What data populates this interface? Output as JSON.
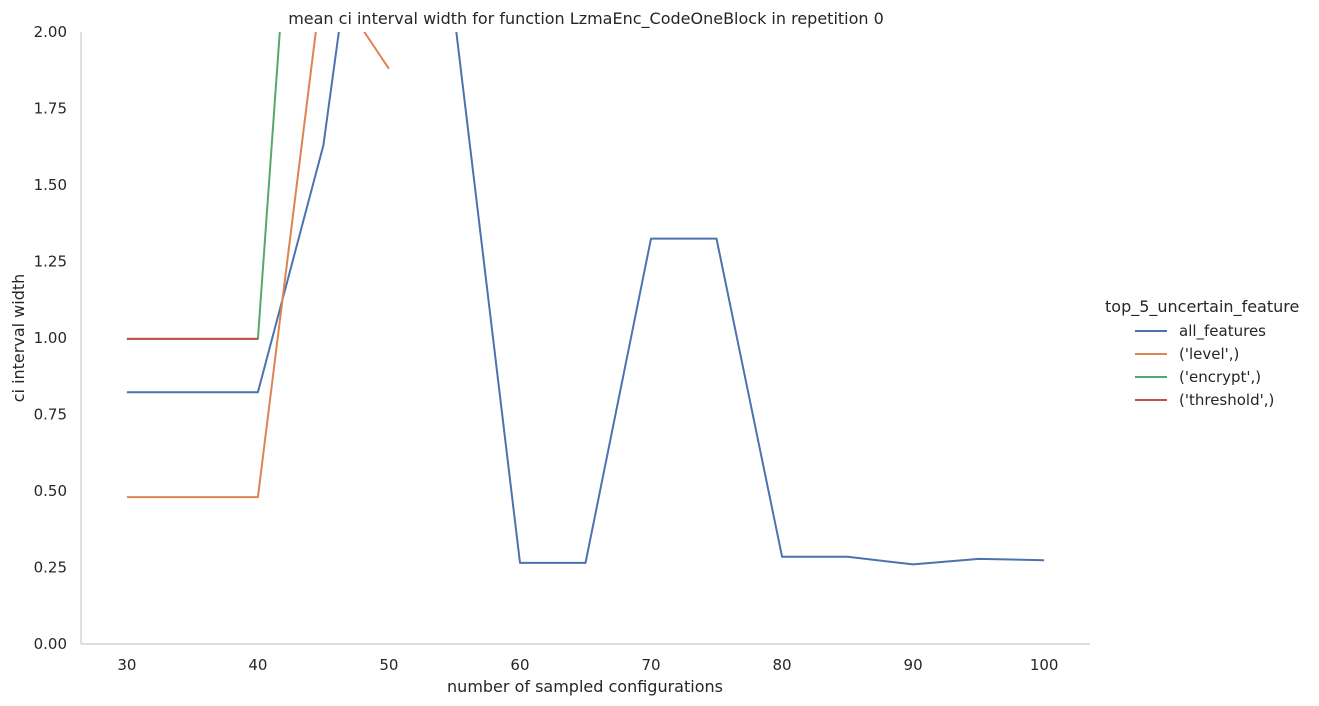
{
  "chart_data": {
    "type": "line",
    "title": "mean ci interval width for function LzmaEnc_CodeOneBlock in repetition 0",
    "xlabel": "number of sampled configurations",
    "ylabel": "ci interval width",
    "xlim": [
      26.5,
      103.5
    ],
    "ylim": [
      0,
      2
    ],
    "xticks": [
      30,
      40,
      50,
      60,
      70,
      80,
      90,
      100
    ],
    "yticks": [
      "0.00",
      "0.25",
      "0.50",
      "0.75",
      "1.00",
      "1.25",
      "1.50",
      "1.75",
      "2.00"
    ],
    "grid": false,
    "legend": {
      "title": "top_5_uncertain_feature",
      "placement": "right"
    },
    "series": [
      {
        "name": "all_features",
        "color": "#4c72b0",
        "x": [
          30,
          35,
          40,
          45,
          50,
          55,
          60,
          65,
          70,
          75,
          80,
          85,
          90,
          95,
          100
        ],
        "y": [
          0.823,
          0.823,
          0.823,
          1.63,
          3.2,
          2.05,
          0.265,
          0.265,
          1.325,
          1.325,
          0.285,
          0.285,
          0.26,
          0.278,
          0.274
        ]
      },
      {
        "name": "('level',)",
        "color": "#dd8452",
        "x": [
          30,
          35,
          40,
          45,
          50
        ],
        "y": [
          0.48,
          0.48,
          0.48,
          2.2,
          1.88
        ]
      },
      {
        "name": "('encrypt',)",
        "color": "#55a868",
        "x": [
          30,
          35,
          40,
          45
        ],
        "y": [
          0.997,
          0.997,
          0.997,
          4.0
        ]
      },
      {
        "name": "('threshold',)",
        "color": "#c44e52",
        "x": [
          30,
          35,
          40
        ],
        "y": [
          0.997,
          0.997,
          0.997
        ]
      }
    ]
  }
}
